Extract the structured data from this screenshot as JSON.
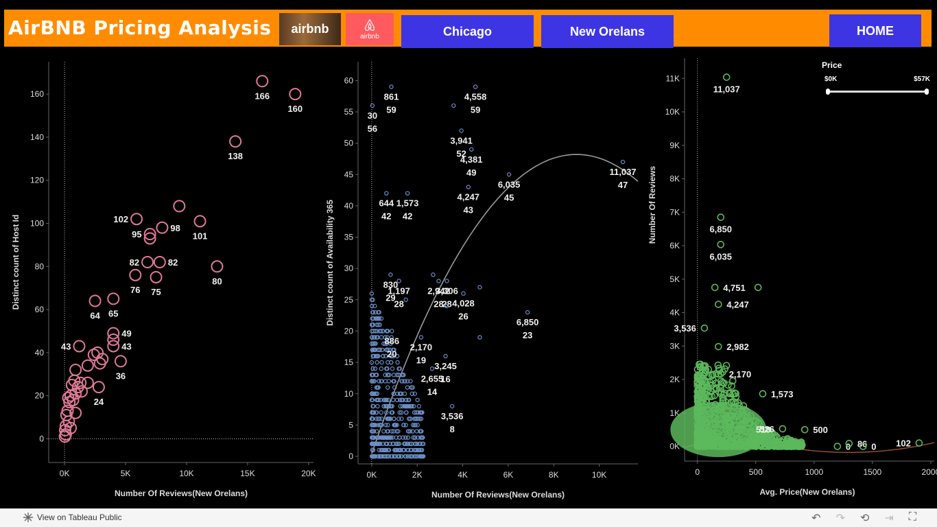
{
  "header": {
    "title": "AirBNB Pricing Analysis",
    "logo1_text": "airbnb",
    "logo2_text": "airbnb",
    "nav": {
      "chicago": "Chicago",
      "new_orleans": "New Orelans",
      "home": "HOME"
    },
    "colors": {
      "banner": "#ff8c00",
      "button": "#3d35e3"
    }
  },
  "slider": {
    "label": "Price",
    "min_label": "$0K",
    "max_label": "$57K"
  },
  "footer": {
    "view_label": "View on Tableau Public"
  },
  "chart_data": [
    {
      "type": "scatter",
      "xlabel": "Number Of Reviews(New Orelans)",
      "ylabel": "Distinct count of Host Id",
      "xlim": [
        -1300,
        20400
      ],
      "ylim": [
        -11,
        175
      ],
      "xticks": [
        0,
        5000,
        10000,
        15000,
        20000
      ],
      "xtick_labels": [
        "0K",
        "5K",
        "10K",
        "15K",
        "20K"
      ],
      "yticks": [
        0,
        20,
        40,
        60,
        80,
        100,
        120,
        140,
        160
      ],
      "color": "#e07a96",
      "points": [
        {
          "x": 16200,
          "y": 166,
          "label": "166"
        },
        {
          "x": 18900,
          "y": 160,
          "label": "160"
        },
        {
          "x": 14000,
          "y": 138,
          "label": "138"
        },
        {
          "x": 9400,
          "y": 108
        },
        {
          "x": 5900,
          "y": 102,
          "label": "102",
          "label_side": "left"
        },
        {
          "x": 11100,
          "y": 101,
          "label": "101"
        },
        {
          "x": 8000,
          "y": 98,
          "label": "98",
          "label_side": "right"
        },
        {
          "x": 7000,
          "y": 95,
          "label": "95",
          "label_side": "left"
        },
        {
          "x": 7000,
          "y": 93
        },
        {
          "x": 6800,
          "y": 82,
          "label": "82",
          "label_side": "left"
        },
        {
          "x": 7800,
          "y": 82,
          "label": "82",
          "label_side": "right"
        },
        {
          "x": 12500,
          "y": 80,
          "label": "80"
        },
        {
          "x": 5800,
          "y": 76,
          "label": "76"
        },
        {
          "x": 7500,
          "y": 75,
          "label": "75"
        },
        {
          "x": 4000,
          "y": 65,
          "label": "65"
        },
        {
          "x": 2500,
          "y": 64,
          "label": "64"
        },
        {
          "x": 4000,
          "y": 49,
          "label": "49",
          "label_side": "right"
        },
        {
          "x": 4000,
          "y": 46
        },
        {
          "x": 1200,
          "y": 43,
          "label": "43",
          "label_side": "left"
        },
        {
          "x": 4000,
          "y": 43,
          "label": "43",
          "label_side": "right"
        },
        {
          "x": 2700,
          "y": 40
        },
        {
          "x": 3100,
          "y": 37
        },
        {
          "x": 2400,
          "y": 39
        },
        {
          "x": 2900,
          "y": 35
        },
        {
          "x": 4600,
          "y": 36,
          "label": "36"
        },
        {
          "x": 1900,
          "y": 34
        },
        {
          "x": 900,
          "y": 32
        },
        {
          "x": 2800,
          "y": 24,
          "label": "24"
        },
        {
          "x": 1900,
          "y": 26
        },
        {
          "x": 800,
          "y": 27
        },
        {
          "x": 1300,
          "y": 26
        },
        {
          "x": 600,
          "y": 25
        },
        {
          "x": 1100,
          "y": 24
        },
        {
          "x": 1400,
          "y": 22
        },
        {
          "x": 900,
          "y": 21
        },
        {
          "x": 500,
          "y": 20
        },
        {
          "x": 300,
          "y": 19
        },
        {
          "x": 700,
          "y": 18
        },
        {
          "x": 400,
          "y": 17
        },
        {
          "x": 900,
          "y": 12
        },
        {
          "x": 250,
          "y": 13
        },
        {
          "x": 150,
          "y": 11
        },
        {
          "x": 350,
          "y": 8
        },
        {
          "x": 500,
          "y": 5
        },
        {
          "x": 100,
          "y": 6
        },
        {
          "x": 50,
          "y": 4
        },
        {
          "x": 100,
          "y": 2
        },
        {
          "x": 30,
          "y": 1
        }
      ]
    },
    {
      "type": "scatter",
      "xlabel": "Number Of Reviews(New Orelans)",
      "ylabel": "Distinct count of Availability 365",
      "xlim": [
        -600,
        11700
      ],
      "ylim": [
        -1.2,
        63
      ],
      "xticks": [
        0,
        2000,
        4000,
        6000,
        8000,
        10000
      ],
      "xtick_labels": [
        "0K",
        "2K",
        "4K",
        "6K",
        "8K",
        "10K"
      ],
      "yticks": [
        0,
        5,
        10,
        15,
        20,
        25,
        30,
        35,
        40,
        45,
        50,
        55,
        60
      ],
      "color": "#6b8fc6",
      "trend": "polynomial",
      "points": [
        {
          "x": 30,
          "y": 56,
          "label": "30\n56"
        },
        {
          "x": 861,
          "y": 59,
          "label": "861\n59"
        },
        {
          "x": 4558,
          "y": 59,
          "label": "4,558\n59"
        },
        {
          "x": 3600,
          "y": 56
        },
        {
          "x": 3941,
          "y": 52,
          "label": "3,941\n52"
        },
        {
          "x": 4381,
          "y": 49,
          "label": "4,381\n49"
        },
        {
          "x": 6035,
          "y": 45,
          "label": "6,035\n45"
        },
        {
          "x": 11037,
          "y": 47,
          "label": "11,037\n47"
        },
        {
          "x": 644,
          "y": 42,
          "label": "644\n42"
        },
        {
          "x": 1573,
          "y": 42,
          "label": "1,573\n42"
        },
        {
          "x": 4247,
          "y": 43,
          "label": "4,247\n43"
        },
        {
          "x": 830,
          "y": 29,
          "label": "830\n29"
        },
        {
          "x": 1197,
          "y": 28,
          "label": "1,197\n28"
        },
        {
          "x": 3306,
          "y": 28,
          "label": "3,306\n28"
        },
        {
          "x": 2942,
          "y": 28,
          "label": "2,942\n28"
        },
        {
          "x": 2700,
          "y": 29
        },
        {
          "x": 4028,
          "y": 26,
          "label": "4,028\n26"
        },
        {
          "x": 4750,
          "y": 27
        },
        {
          "x": 0,
          "y": 26
        },
        {
          "x": 1500,
          "y": 25
        },
        {
          "x": 3300,
          "y": 24
        },
        {
          "x": 6850,
          "y": 23,
          "label": "6,850\n23"
        },
        {
          "x": 886,
          "y": 20,
          "label": "886\n20"
        },
        {
          "x": 2170,
          "y": 19,
          "label": "2,170\n19"
        },
        {
          "x": 4750,
          "y": 19
        },
        {
          "x": 3245,
          "y": 16,
          "label": "3,245\n16"
        },
        {
          "x": 2655,
          "y": 14,
          "label": "2,655\n14"
        },
        {
          "x": 3536,
          "y": 8,
          "label": "3,536\n8"
        }
      ],
      "dense_cluster": {
        "x_range": [
          0,
          2300
        ],
        "y_range": [
          0,
          24
        ]
      }
    },
    {
      "type": "scatter",
      "xlabel": "Avg. Price(New Orelans)",
      "ylabel": "Number Of Reviews",
      "xlim": [
        -110,
        2030
      ],
      "ylim": [
        -440,
        11600
      ],
      "xticks": [
        0,
        500,
        1000,
        1500,
        2000
      ],
      "yticks": [
        0,
        1000,
        2000,
        3000,
        4000,
        5000,
        6000,
        7000,
        8000,
        9000,
        10000,
        11000
      ],
      "ytick_labels": [
        "0K",
        "1K",
        "2K",
        "3K",
        "4K",
        "5K",
        "6K",
        "7K",
        "8K",
        "9K",
        "10K",
        "11K"
      ],
      "color": "#5cb85c",
      "trend": "polynomial",
      "points": [
        {
          "x": 250,
          "y": 11037,
          "label": "11,037"
        },
        {
          "x": 200,
          "y": 6850,
          "label": "6,850"
        },
        {
          "x": 200,
          "y": 6035,
          "label": "6,035"
        },
        {
          "x": 150,
          "y": 4751,
          "label": "4,751",
          "label_side": "right"
        },
        {
          "x": 520,
          "y": 4751
        },
        {
          "x": 180,
          "y": 4247,
          "label": "4,247",
          "label_side": "right"
        },
        {
          "x": 60,
          "y": 3536,
          "label": "3,536",
          "label_side": "left"
        },
        {
          "x": 180,
          "y": 2982,
          "label": "2,982",
          "label_side": "right"
        },
        {
          "x": 200,
          "y": 2170,
          "label": "2,170",
          "label_side": "right"
        },
        {
          "x": 560,
          "y": 1573,
          "label": "1,573",
          "label_side": "right"
        },
        {
          "x": 430,
          "y": 518,
          "label": "518",
          "label_side": "right"
        },
        {
          "x": 730,
          "y": 526,
          "label": "526",
          "label_side": "left"
        },
        {
          "x": 920,
          "y": 500,
          "label": "500",
          "label_side": "right"
        },
        {
          "x": 1200,
          "y": 0,
          "label": "0",
          "label_side": "right"
        },
        {
          "x": 1300,
          "y": 86,
          "label": "86",
          "label_side": "right"
        },
        {
          "x": 1420,
          "y": 0,
          "label": "0",
          "label_side": "right"
        },
        {
          "x": 1900,
          "y": 102,
          "label": "102",
          "label_side": "left"
        }
      ]
    }
  ]
}
